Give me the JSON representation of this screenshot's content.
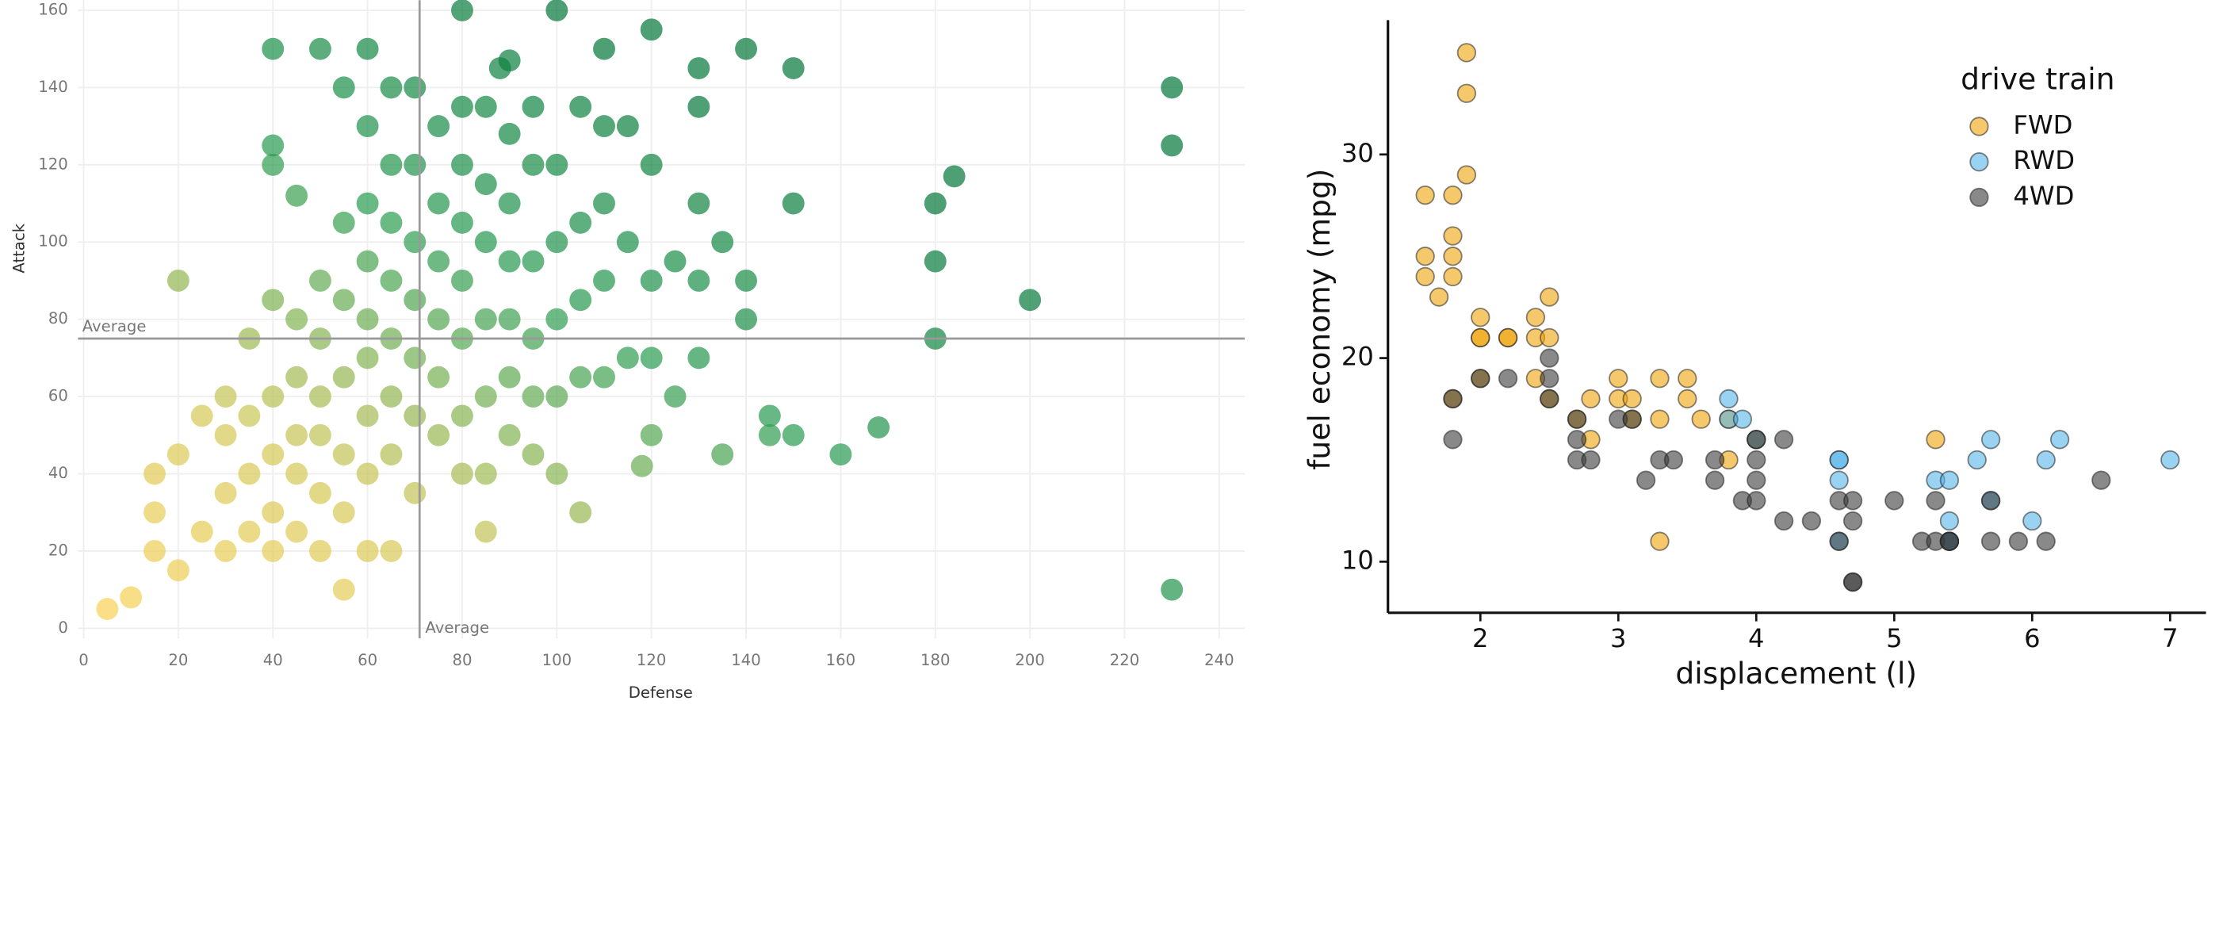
{
  "chart_data": [
    {
      "type": "scatter",
      "x_label": "Defense",
      "y_label": "Attack",
      "xlim": [
        -1.2,
        245.4
      ],
      "ylim": [
        -2.6,
        162.6
      ],
      "xticks": [
        0,
        20,
        40,
        60,
        80,
        100,
        120,
        140,
        160,
        180,
        200,
        220,
        240
      ],
      "yticks": [
        0,
        20,
        40,
        60,
        80,
        100,
        120,
        140,
        160
      ],
      "grid": true,
      "color_scale": [
        "#ffd35a",
        "#d3c95a",
        "#2e9e55",
        "#0a7a3e"
      ],
      "reference_lines": [
        {
          "axis": "x",
          "value": 71,
          "label": "Average"
        },
        {
          "axis": "y",
          "value": 75,
          "label": "Average"
        }
      ],
      "series": [
        {
          "x": [
            5,
            10,
            15,
            15,
            15,
            20,
            20,
            20,
            25,
            25,
            30,
            30,
            30,
            30,
            35,
            35,
            35,
            35,
            40,
            40,
            40,
            40,
            40,
            40,
            40,
            40,
            45,
            45,
            45,
            45,
            45,
            45,
            50,
            50,
            50,
            50,
            50,
            50,
            50,
            55,
            55,
            55,
            55,
            55,
            55,
            55,
            60,
            60,
            60,
            60,
            60,
            60,
            60,
            60,
            60,
            65,
            65,
            65,
            65,
            65,
            65,
            65,
            65,
            70,
            70,
            70,
            70,
            70,
            70,
            70,
            75,
            75,
            75,
            75,
            75,
            75,
            80,
            80,
            80,
            80,
            80,
            80,
            80,
            80,
            85,
            85,
            85,
            85,
            85,
            85,
            85,
            88,
            90,
            90,
            90,
            90,
            90,
            90,
            90,
            95,
            95,
            95,
            95,
            95,
            95,
            100,
            100,
            100,
            100,
            100,
            100,
            105,
            105,
            105,
            105,
            105,
            110,
            110,
            110,
            110,
            110,
            115,
            115,
            115,
            118,
            120,
            120,
            120,
            120,
            120,
            125,
            125,
            130,
            130,
            130,
            130,
            130,
            135,
            135,
            140,
            140,
            140,
            145,
            145,
            150,
            150,
            150,
            160,
            168,
            180,
            180,
            180,
            184,
            200,
            230,
            230,
            230
          ],
          "values": [
            5,
            8,
            20,
            30,
            40,
            15,
            45,
            90,
            25,
            55,
            20,
            35,
            50,
            60,
            25,
            40,
            55,
            75,
            20,
            30,
            45,
            60,
            85,
            120,
            125,
            150,
            25,
            40,
            50,
            65,
            80,
            112,
            20,
            35,
            50,
            60,
            75,
            90,
            150,
            10,
            30,
            45,
            65,
            85,
            105,
            140,
            20,
            40,
            55,
            70,
            80,
            95,
            110,
            130,
            150,
            20,
            45,
            60,
            75,
            90,
            105,
            120,
            140,
            35,
            55,
            70,
            85,
            100,
            120,
            140,
            50,
            65,
            80,
            95,
            110,
            130,
            40,
            55,
            75,
            90,
            105,
            120,
            135,
            160,
            25,
            40,
            60,
            80,
            100,
            115,
            135,
            145,
            50,
            65,
            80,
            95,
            110,
            128,
            147,
            45,
            60,
            75,
            95,
            120,
            135,
            40,
            60,
            80,
            100,
            120,
            160,
            30,
            65,
            85,
            105,
            135,
            65,
            90,
            110,
            130,
            150,
            70,
            100,
            130,
            42,
            50,
            70,
            90,
            120,
            155,
            60,
            95,
            70,
            90,
            110,
            135,
            145,
            45,
            100,
            80,
            90,
            150,
            50,
            55,
            50,
            110,
            145,
            45,
            52,
            75,
            95,
            110,
            117,
            85,
            10,
            125,
            140
          ]
        }
      ]
    },
    {
      "type": "scatter",
      "x_label": "displacement (l)",
      "y_label": "fuel economy (mpg)",
      "xlim": [
        1.33,
        7.26
      ],
      "ylim": [
        7.49,
        36.6
      ],
      "xticks": [
        2,
        3,
        4,
        5,
        6,
        7
      ],
      "yticks": [
        10,
        20,
        30
      ],
      "legend_title": "drive train",
      "legend": "top-right",
      "series": [
        {
          "name": "FWD",
          "color": "#f0a30a",
          "x": [
            1.6,
            1.6,
            1.6,
            1.7,
            1.8,
            1.8,
            1.8,
            1.8,
            1.8,
            1.9,
            1.9,
            1.9,
            2.0,
            2.0,
            2.0,
            2.0,
            2.2,
            2.2,
            2.4,
            2.4,
            2.4,
            2.5,
            2.5,
            2.5,
            2.7,
            2.8,
            2.8,
            3.0,
            3.0,
            3.1,
            3.1,
            3.3,
            3.3,
            3.3,
            3.5,
            3.5,
            3.6,
            3.8,
            3.8,
            4.0,
            5.3
          ],
          "values": [
            28,
            25,
            24,
            23,
            26,
            24,
            28,
            25,
            18,
            35,
            33,
            29,
            21,
            22,
            19,
            21,
            21,
            21,
            22,
            21,
            19,
            23,
            21,
            18,
            17,
            18,
            16,
            19,
            18,
            18,
            17,
            19,
            17,
            11,
            19,
            18,
            17,
            17,
            15,
            16,
            16
          ]
        },
        {
          "name": "RWD",
          "color": "#56b4e9",
          "x": [
            3.8,
            3.8,
            3.9,
            4.0,
            4.6,
            4.6,
            4.6,
            4.6,
            5.3,
            5.4,
            5.4,
            5.4,
            5.4,
            5.6,
            5.7,
            5.7,
            6.0,
            6.1,
            6.2,
            7.0
          ],
          "values": [
            18,
            17,
            17,
            16,
            15,
            15,
            14,
            11,
            14,
            14,
            12,
            11,
            11,
            15,
            13,
            16,
            12,
            15,
            16,
            15
          ]
        },
        {
          "name": "4WD",
          "color": "#3a3a3a",
          "x": [
            1.8,
            1.8,
            2.0,
            2.2,
            2.5,
            2.5,
            2.5,
            2.7,
            2.7,
            2.7,
            2.8,
            3.0,
            3.1,
            3.2,
            3.3,
            3.4,
            3.7,
            3.7,
            3.9,
            4.0,
            4.0,
            4.0,
            4.0,
            4.2,
            4.2,
            4.4,
            4.6,
            4.6,
            4.7,
            4.7,
            4.7,
            4.7,
            5.0,
            5.2,
            5.3,
            5.3,
            5.4,
            5.4,
            5.7,
            5.7,
            5.9,
            6.1,
            6.5
          ],
          "values": [
            18,
            16,
            19,
            19,
            20,
            19,
            18,
            17,
            16,
            15,
            15,
            17,
            17,
            14,
            15,
            15,
            15,
            14,
            13,
            13,
            14,
            15,
            16,
            12,
            16,
            12,
            13,
            11,
            9,
            9,
            13,
            12,
            13,
            11,
            11,
            13,
            11,
            11,
            13,
            11,
            11,
            11,
            14
          ]
        }
      ]
    }
  ]
}
